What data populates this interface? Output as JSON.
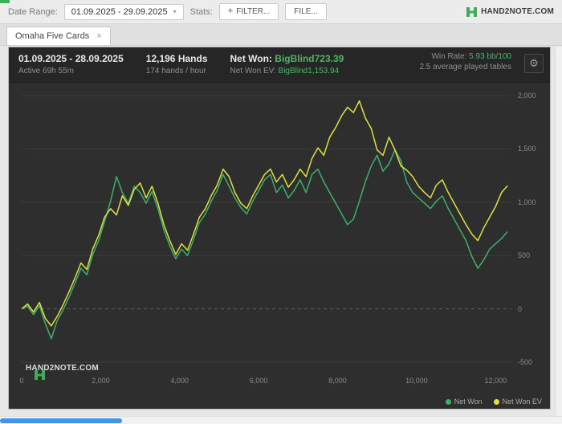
{
  "topbar": {
    "date_range_label": "Date Range:",
    "date_range_value": "01.09.2025 - 29.09.2025",
    "date_caret": "▾",
    "stats_label": "Stats:",
    "plus": "+",
    "filter_button": "FILTER...",
    "file_button": "FILE...",
    "brand": "HAND2NOTE.COM"
  },
  "tabs": [
    {
      "label": "Omaha Five Cards",
      "close": "×"
    }
  ],
  "panel": {
    "header": {
      "date_range": "01.09.2025 - 28.09.2025",
      "active_time": "Active 69h 55m",
      "hands": "12,196 Hands",
      "hands_per_hour": "174 hands / hour",
      "net_won_label": "Net Won:",
      "net_won_value": "BigBlind723.39",
      "net_won_ev_label": "Net Won  EV:",
      "net_won_ev_value": "BigBlind1,153.94",
      "win_rate_label": "Win Rate:",
      "win_rate_value": "5.93 bb/100",
      "avg_tables": "2.5 average played tables",
      "gear": "⚙"
    },
    "watermark": "HAND2NOTE.COM"
  },
  "chart_data": {
    "type": "line",
    "title": "",
    "xlabel": "",
    "ylabel": "",
    "x_unit": "hands",
    "y_unit": "big blinds",
    "xlim": [
      0,
      12400
    ],
    "ylim": [
      -560,
      2060
    ],
    "grid": true,
    "zero_line_dashed": true,
    "legend_position": "bottom-right",
    "x_ticks": {
      "values": [
        0,
        2000,
        4000,
        6000,
        8000,
        10000,
        12000
      ],
      "labels": [
        "0",
        "2,000",
        "4,000",
        "6,000",
        "8,000",
        "10,000",
        "12,000"
      ]
    },
    "y_ticks": {
      "values": [
        2000,
        1500,
        1000,
        500,
        0,
        -500
      ],
      "labels": [
        "2,000",
        "1,500",
        "1,000",
        "500",
        "0",
        "-500"
      ]
    },
    "series": [
      {
        "name": "Net Won",
        "color": "#3eb06d",
        "final_value": 723.39,
        "x_step": 150,
        "values": [
          0,
          25,
          -55,
          30,
          -140,
          -280,
          -110,
          -10,
          110,
          240,
          380,
          320,
          510,
          640,
          820,
          1010,
          1240,
          1090,
          990,
          1150,
          1090,
          990,
          1100,
          940,
          740,
          590,
          470,
          560,
          500,
          650,
          810,
          890,
          1010,
          1110,
          1260,
          1150,
          1040,
          950,
          890,
          1010,
          1110,
          1210,
          1260,
          1090,
          1160,
          1040,
          1110,
          1210,
          1090,
          1260,
          1310,
          1190,
          1090,
          990,
          890,
          790,
          840,
          1010,
          1190,
          1340,
          1440,
          1290,
          1360,
          1490,
          1390,
          1190,
          1090,
          1040,
          990,
          940,
          1010,
          1060,
          940,
          840,
          740,
          640,
          490,
          380,
          460,
          560,
          610,
          660,
          723.39
        ]
      },
      {
        "name": "Net Won EV",
        "color": "#dfe23a",
        "final_value": 1153.94,
        "x_step": 150,
        "values": [
          0,
          45,
          -30,
          60,
          -90,
          -160,
          -70,
          40,
          160,
          290,
          430,
          370,
          560,
          690,
          860,
          940,
          880,
          1060,
          970,
          1120,
          1180,
          1040,
          1150,
          990,
          790,
          640,
          510,
          610,
          550,
          700,
          860,
          940,
          1060,
          1160,
          1310,
          1240,
          1090,
          990,
          940,
          1060,
          1160,
          1260,
          1310,
          1190,
          1260,
          1140,
          1210,
          1310,
          1240,
          1410,
          1510,
          1440,
          1610,
          1700,
          1810,
          1890,
          1840,
          1950,
          1790,
          1690,
          1490,
          1440,
          1610,
          1490,
          1340,
          1300,
          1240,
          1150,
          1090,
          1040,
          1160,
          1210,
          1090,
          990,
          890,
          790,
          700,
          640,
          760,
          860,
          960,
          1090,
          1153.94
        ]
      }
    ]
  }
}
